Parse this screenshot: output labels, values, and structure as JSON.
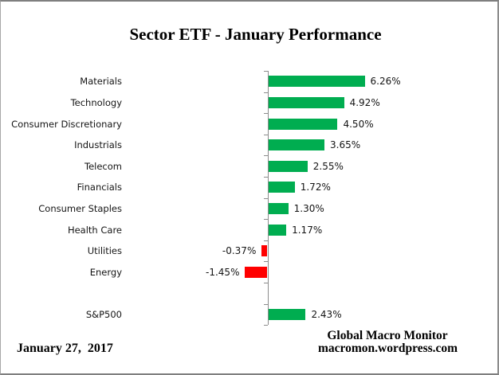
{
  "window": {
    "background": "#ffffff",
    "border_color": "#7f7f7f"
  },
  "chart_data": {
    "type": "bar",
    "orientation": "horizontal",
    "title": "Sector ETF - January Performance",
    "categories": [
      "Materials",
      "Technology",
      "Consumer Discretionary",
      "Industrials",
      "Telecom",
      "Financials",
      "Consumer Staples",
      "Health Care",
      "Utilities",
      "Energy",
      "",
      "S&P500"
    ],
    "values": [
      6.26,
      4.92,
      4.5,
      3.65,
      2.55,
      1.72,
      1.3,
      1.17,
      -0.37,
      -1.45,
      null,
      2.43
    ],
    "value_labels": [
      "6.26%",
      "4.92%",
      "4.50%",
      "3.65%",
      "2.55%",
      "1.72%",
      "1.30%",
      "1.17%",
      "-0.37%",
      "-1.45%",
      "",
      "2.43%"
    ],
    "positive_color": "#00AD50",
    "negative_color": "#FF0000",
    "axis_color": "#8c8c8c",
    "grid": false,
    "legend": false,
    "value_axis_visible": false,
    "unit": "percent"
  },
  "footer": {
    "date": "January 27,  2017",
    "brand_line1": "Global Macro Monitor",
    "brand_line2": "macromon.wordpress.com"
  }
}
